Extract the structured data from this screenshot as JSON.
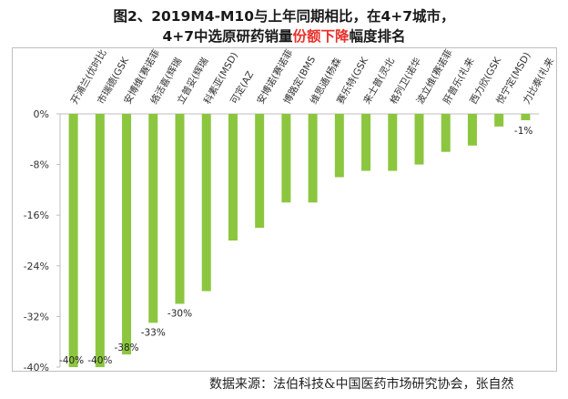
{
  "title_line1": "图2、2019M4-M10与上年同期相比，在4+7城市，",
  "title_line2_pre": "4+7中选原研药销量",
  "title_line2_highlight": "份额下降",
  "title_line2_post": "幅度排名",
  "source": "数据来源：法伯科技&中国医药市场研究协会，张自然",
  "colors": {
    "bar": "#8cc63f",
    "highlight": "#e8322b",
    "axis": "#bfbfbf"
  },
  "chart_data": {
    "type": "bar",
    "categories": [
      "开浦兰(优时比",
      "市瑞德(GSK",
      "安博维(赛诺菲",
      "络活喜(辉瑞",
      "立普妥(辉瑞",
      "科素亚(MSD)",
      "可定(AZ",
      "安博诺(赛诺菲",
      "博路定(BMS",
      "维思通(杨森",
      "赛乐特(GSK",
      "来士普(灵北",
      "格列卫(诺华",
      "波立维(赛诺菲",
      "肝普乐(礼来",
      "西力欣(GSK",
      "悦宁定(MSD)",
      "力比泰(礼来"
    ],
    "values": [
      -40,
      -40,
      -38,
      -33,
      -30,
      -28,
      -20,
      -18,
      -14,
      -14,
      -10,
      -9,
      -9,
      -8,
      -6,
      -5,
      -2,
      -1
    ],
    "data_labels": [
      "-40%",
      "-40%",
      "-38%",
      "-33%",
      "-30%",
      null,
      null,
      null,
      null,
      null,
      null,
      null,
      null,
      null,
      null,
      null,
      null,
      "-1%"
    ],
    "ylim": [
      -40,
      0
    ],
    "yticks": [
      0,
      -8,
      -16,
      -24,
      -32,
      -40
    ],
    "ytick_labels": [
      "0%",
      "-8%",
      "-16%",
      "-24%",
      "-32%",
      "-40%"
    ],
    "xlabel": "",
    "ylabel": "",
    "grid": false,
    "legend": false
  }
}
